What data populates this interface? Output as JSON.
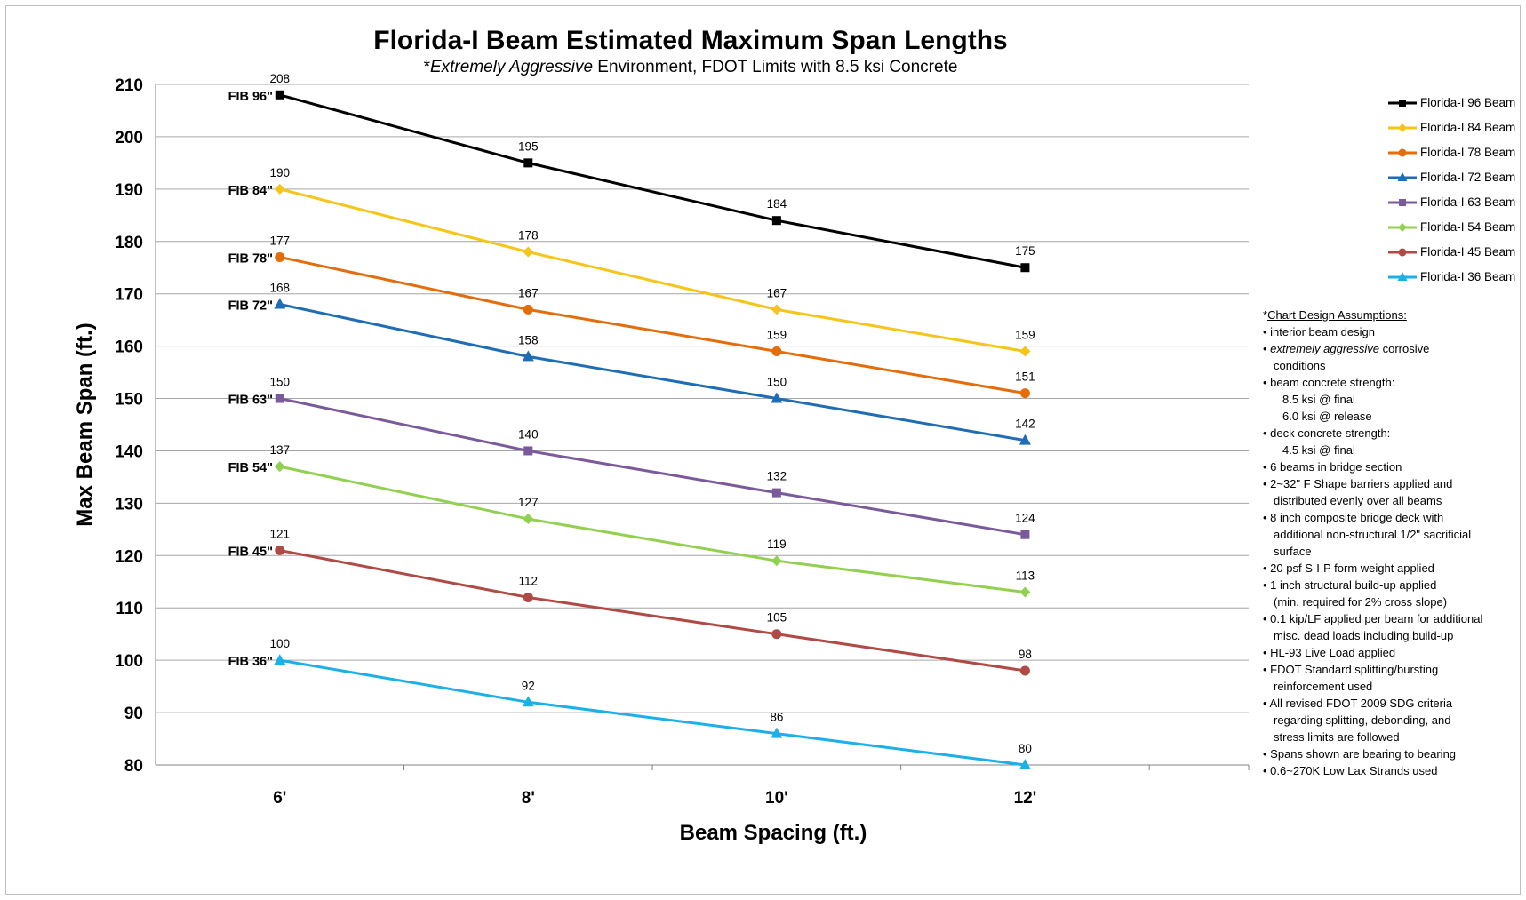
{
  "chart_data": {
    "type": "line",
    "title": "Florida-I Beam Estimated Maximum Span Lengths",
    "subtitle_prefix": "*",
    "subtitle_italic": "Extremely Aggressive",
    "subtitle_rest": " Environment, FDOT Limits with 8.5 ksi Concrete",
    "xlabel": "Beam Spacing (ft.)",
    "ylabel": "Max Beam Span (ft.)",
    "categories": [
      "6'",
      "8'",
      "10'",
      "12'"
    ],
    "ylim": [
      80,
      210
    ],
    "ytick_step": 10,
    "grid": "horizontal",
    "legend_placement": "right",
    "series": [
      {
        "name": "Florida-I 96 Beam",
        "short": "FIB 96\"",
        "values": [
          208,
          195,
          184,
          175
        ],
        "color": "#000000",
        "marker": "square"
      },
      {
        "name": "Florida-I 84 Beam",
        "short": "FIB 84\"",
        "values": [
          190,
          178,
          167,
          159
        ],
        "color": "#F5C518",
        "marker": "diamond"
      },
      {
        "name": "Florida-I 78 Beam",
        "short": "FIB 78\"",
        "values": [
          177,
          167,
          159,
          151
        ],
        "color": "#E46C0A",
        "marker": "circle"
      },
      {
        "name": "Florida-I 72 Beam",
        "short": "FIB 72\"",
        "values": [
          168,
          158,
          150,
          142
        ],
        "color": "#1F6DB5",
        "marker": "triangle"
      },
      {
        "name": "Florida-I 63 Beam",
        "short": "FIB 63\"",
        "values": [
          150,
          140,
          132,
          124
        ],
        "color": "#7A5A9A",
        "marker": "square"
      },
      {
        "name": "Florida-I 54 Beam",
        "short": "FIB 54\"",
        "values": [
          137,
          127,
          119,
          113
        ],
        "color": "#92D050",
        "marker": "diamond"
      },
      {
        "name": "Florida-I 45 Beam",
        "short": "FIB 45\"",
        "values": [
          121,
          112,
          105,
          98
        ],
        "color": "#B04A44",
        "marker": "circle"
      },
      {
        "name": "Florida-I 36 Beam",
        "short": "FIB 36\"",
        "values": [
          100,
          92,
          86,
          80
        ],
        "color": "#1CB0E8",
        "marker": "triangle"
      }
    ]
  },
  "notes": {
    "title_prefix": "*",
    "title": "Chart Design Assumptions:",
    "lines": [
      {
        "text": "• interior beam design",
        "indent": 0
      },
      {
        "text": "• ",
        "italic": "extremely aggressive",
        "rest": " corrosive",
        "indent": 0
      },
      {
        "text": "conditions",
        "indent": 1
      },
      {
        "text": "• beam concrete strength:",
        "indent": 0
      },
      {
        "text": "8.5 ksi @ final",
        "indent": 2
      },
      {
        "text": "6.0 ksi @ release",
        "indent": 2
      },
      {
        "text": "• deck concrete strength:",
        "indent": 0
      },
      {
        "text": "4.5 ksi @ final",
        "indent": 2
      },
      {
        "text": "• 6 beams in bridge section",
        "indent": 0
      },
      {
        "text": "• 2~32\" F Shape barriers applied and",
        "indent": 0
      },
      {
        "text": "distributed evenly over all beams",
        "indent": 1
      },
      {
        "text": "•  8 inch composite bridge deck with",
        "indent": 0
      },
      {
        "text": "additional non-structural 1/2\" sacrificial",
        "indent": 1
      },
      {
        "text": "surface",
        "indent": 1
      },
      {
        "text": "• 20 psf S-I-P form weight applied",
        "indent": 0
      },
      {
        "text": "• 1 inch structural build-up applied",
        "indent": 0
      },
      {
        "text": "(min. required for 2% cross slope)",
        "indent": 1
      },
      {
        "text": "• 0.1 kip/LF applied per beam for     additional",
        "indent": 0
      },
      {
        "text": "misc. dead loads including build-up",
        "indent": 1
      },
      {
        "text": "• HL-93 Live Load applied",
        "indent": 0
      },
      {
        "text": "•  FDOT Standard splitting/bursting",
        "indent": 0
      },
      {
        "text": "reinforcement used",
        "indent": 1
      },
      {
        "text": "•  All revised FDOT 2009 SDG criteria",
        "indent": 0
      },
      {
        "text": "regarding splitting, debonding, and",
        "indent": 1
      },
      {
        "text": "stress limits are followed",
        "indent": 1
      },
      {
        "text": "• Spans shown are bearing to bearing",
        "indent": 0
      },
      {
        "text": "• 0.6~270K Low Lax Strands used",
        "indent": 0
      }
    ]
  }
}
